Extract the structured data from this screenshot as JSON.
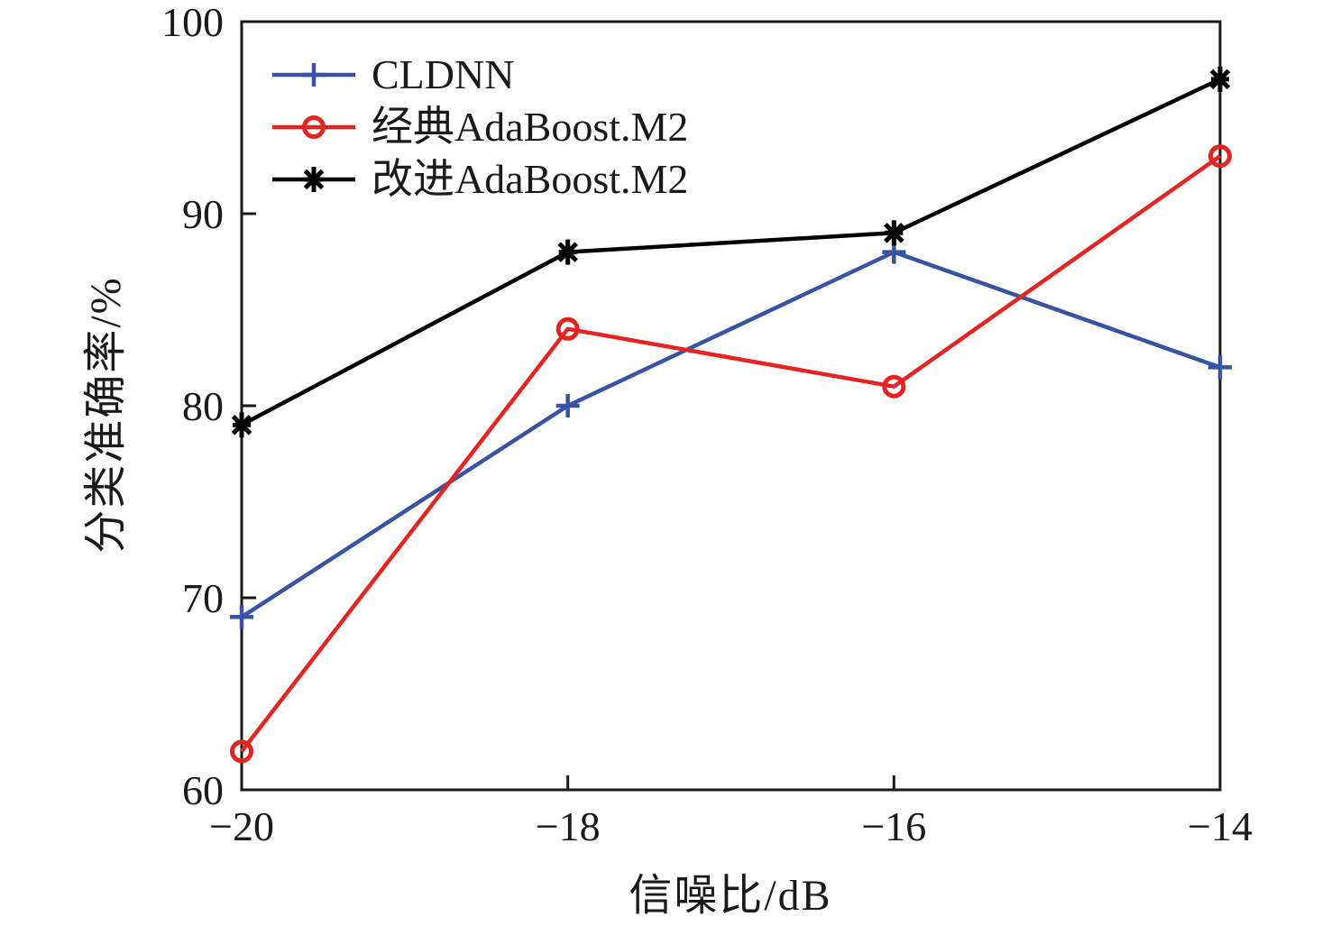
{
  "chart_data": {
    "type": "line",
    "x": [
      -20,
      -18,
      -16,
      -14
    ],
    "xtick_labels": [
      "−20",
      "−18",
      "−16",
      "−14"
    ],
    "yticks": [
      60,
      70,
      80,
      90,
      100
    ],
    "ytick_labels": [
      "60",
      "70",
      "80",
      "90",
      "100"
    ],
    "xlim": [
      -20,
      -14
    ],
    "ylim": [
      60,
      100
    ],
    "xlabel": "信噪比/dB",
    "ylabel": "分类准确率/%",
    "grid": false,
    "legend_position": "top-left-inside",
    "frame_color": "#1a1a1a",
    "series": [
      {
        "id": "cldnn",
        "name": "CLDNN",
        "color": "#3953a4",
        "marker": "plus",
        "values": [
          69,
          80,
          88,
          82
        ]
      },
      {
        "id": "classic-adaboost-m2",
        "name": "经典AdaBoost.M2",
        "color": "#e62320",
        "marker": "circle",
        "values": [
          62,
          84,
          81,
          93
        ]
      },
      {
        "id": "improved-adaboost-m2",
        "name": "改进AdaBoost.M2",
        "color": "#000000",
        "marker": "asterisk",
        "values": [
          79,
          88,
          89,
          97
        ]
      }
    ]
  }
}
